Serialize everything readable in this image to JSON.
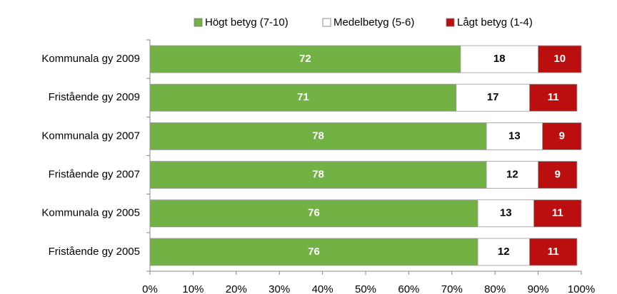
{
  "chart_data": {
    "type": "stacked_bar_horizontal",
    "categories": [
      "Kommunala gy 2009",
      "Fristående gy 2009",
      "Kommunala gy 2007",
      "Fristående gy 2007",
      "Kommunala gy 2005",
      "Fristående gy 2005"
    ],
    "series": [
      {
        "name": "Högt betyg (7-10)",
        "color": "#72b143",
        "label_color": "#ffffff",
        "values": [
          72,
          71,
          78,
          78,
          76,
          76
        ]
      },
      {
        "name": "Medelbetyg (5-6)",
        "color": "#ffffff",
        "label_color": "#000000",
        "values": [
          18,
          17,
          13,
          12,
          13,
          12
        ]
      },
      {
        "name": "Lågt betyg (1-4)",
        "color": "#bb0f0f",
        "label_color": "#ffffff",
        "values": [
          10,
          11,
          9,
          9,
          11,
          11
        ]
      }
    ],
    "xlim": [
      0,
      100
    ],
    "xticks": [
      {
        "value": 0,
        "label": "0%"
      },
      {
        "value": 10,
        "label": "10%"
      },
      {
        "value": 20,
        "label": "20%"
      },
      {
        "value": 30,
        "label": "30%"
      },
      {
        "value": 40,
        "label": "40%"
      },
      {
        "value": 50,
        "label": "50%"
      },
      {
        "value": 60,
        "label": "60%"
      },
      {
        "value": 70,
        "label": "70%"
      },
      {
        "value": 80,
        "label": "80%"
      },
      {
        "value": 90,
        "label": "90%"
      },
      {
        "value": 100,
        "label": "100%"
      }
    ],
    "legend": "top"
  }
}
